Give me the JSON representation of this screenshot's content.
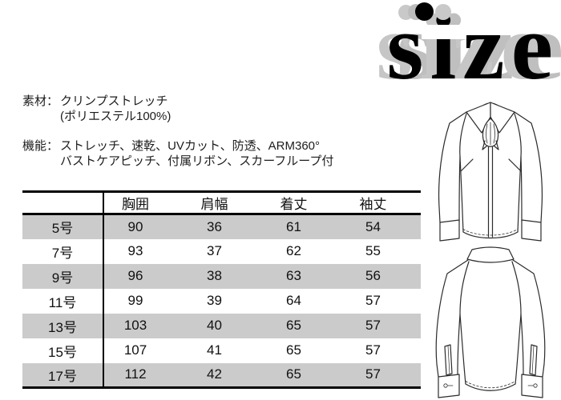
{
  "title": {
    "text": "size",
    "color": "#000000",
    "echo_color": "#c6c6c6"
  },
  "specs": {
    "material_label": "素材：",
    "material_lines": [
      "クリンプストレッチ",
      "(ポリエステル100%)"
    ],
    "function_label": "機能：",
    "function_lines": [
      "ストレッチ、速乾、UVカット、防透、ARM360°",
      "バストケアピッチ、付属リボン、スカーフループ付"
    ]
  },
  "size_table": {
    "columns": [
      "",
      "胸囲",
      "肩幅",
      "着丈",
      "袖丈"
    ],
    "rows": [
      {
        "label": "5号",
        "values": [
          "90",
          "36",
          "61",
          "54"
        ]
      },
      {
        "label": "7号",
        "values": [
          "93",
          "37",
          "62",
          "55"
        ]
      },
      {
        "label": "9号",
        "values": [
          "96",
          "38",
          "63",
          "56"
        ]
      },
      {
        "label": "11号",
        "values": [
          "99",
          "39",
          "64",
          "57"
        ]
      },
      {
        "label": "13号",
        "values": [
          "103",
          "40",
          "65",
          "57"
        ]
      },
      {
        "label": "15号",
        "values": [
          "107",
          "41",
          "65",
          "57"
        ]
      },
      {
        "label": "17号",
        "values": [
          "112",
          "42",
          "65",
          "57"
        ]
      }
    ],
    "alt_row_color": "#cbcbcb",
    "border_color": "#000000"
  },
  "illustrations": {
    "front": "shirt-front-line-drawing-with-ribbon",
    "back": "shirt-back-line-drawing"
  }
}
